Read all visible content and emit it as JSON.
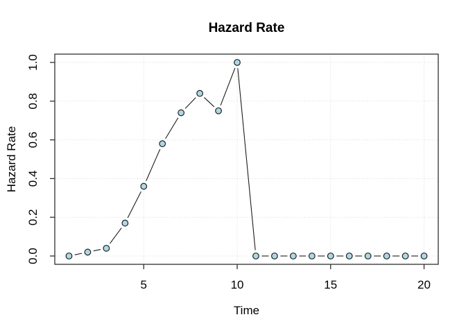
{
  "chart_data": {
    "type": "line",
    "title": "Hazard Rate",
    "xlabel": "Time",
    "ylabel": "Hazard Rate",
    "x": [
      1,
      2,
      3,
      4,
      5,
      6,
      7,
      8,
      9,
      10,
      11,
      12,
      13,
      14,
      15,
      16,
      17,
      18,
      19,
      20
    ],
    "y": [
      0.0,
      0.02,
      0.04,
      0.17,
      0.36,
      0.58,
      0.74,
      0.84,
      0.75,
      1.0,
      0.0,
      0.0,
      0.0,
      0.0,
      0.0,
      0.0,
      0.0,
      0.0,
      0.0,
      0.0
    ],
    "xticks": [
      5,
      10,
      15,
      20
    ],
    "yticks": [
      0.0,
      0.2,
      0.4,
      0.6,
      0.8,
      1.0
    ],
    "xtick_labels": [
      "5",
      "10",
      "15",
      "20"
    ],
    "ytick_labels": [
      "0.0",
      "0.2",
      "0.4",
      "0.6",
      "0.8",
      "1.0"
    ],
    "xlim": [
      0.24,
      20.76
    ],
    "ylim": [
      -0.043,
      1.043
    ],
    "grid": true,
    "grid_style": "dotted",
    "legend": "none",
    "point_style": "circle-open-filled",
    "colors": {
      "point_fill": "#ADD8E6",
      "point_stroke": "#1f1f1f",
      "line": "#1c1c1c",
      "grid": "#d4d4d4",
      "box": "#2f2f2f",
      "text": "#000000",
      "background": "#ffffff"
    }
  }
}
